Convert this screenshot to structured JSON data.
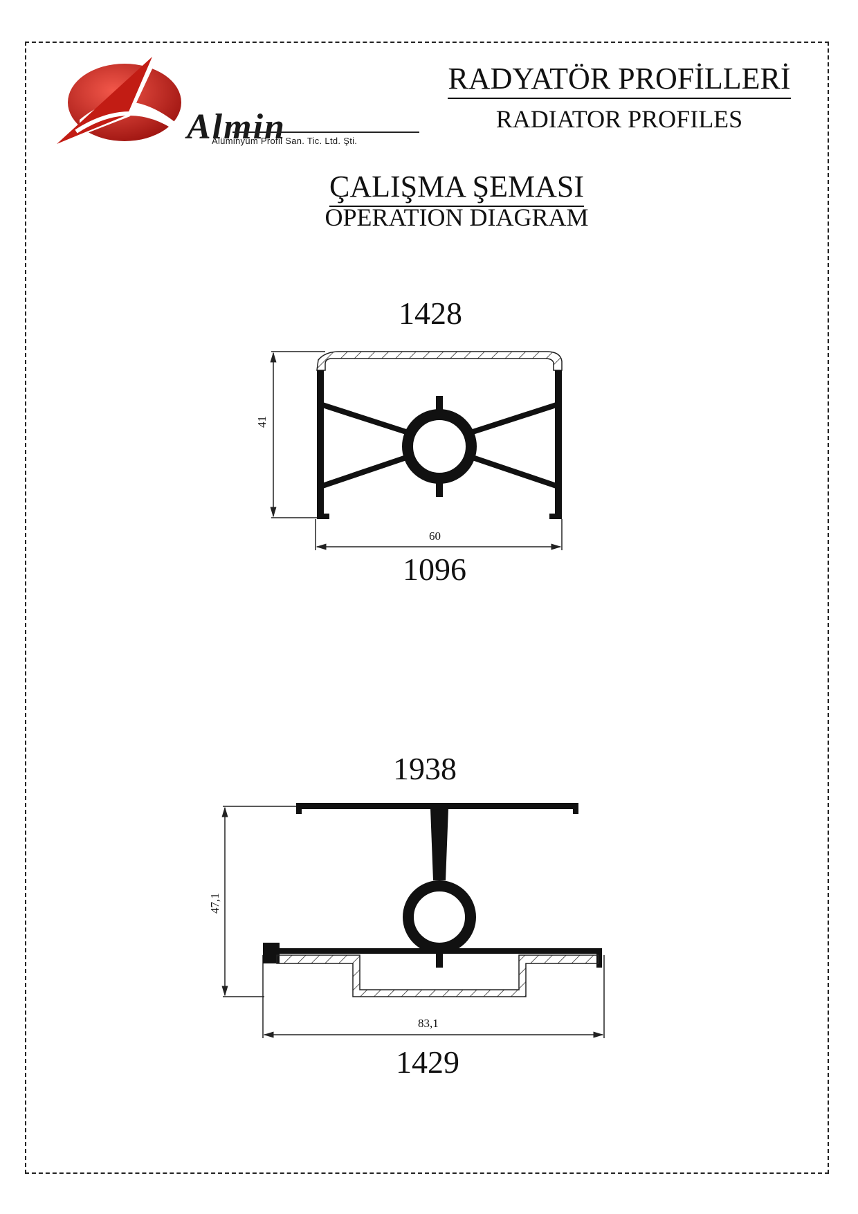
{
  "header": {
    "brand_name": "Almin",
    "brand_subtitle": "Alüminyum Profil San. Tic. Ltd. Şti.",
    "title_tr": "RADYATÖR PROFİLLERİ",
    "title_en": "RADIATOR PROFILES"
  },
  "section": {
    "title_tr": "ÇALIŞMA ŞEMASI",
    "title_en": "OPERATION DIAGRAM"
  },
  "profiles": [
    {
      "top_code": "1428",
      "bottom_code": "1096",
      "height_dim": "41",
      "width_dim": "60"
    },
    {
      "top_code": "1938",
      "bottom_code": "1429",
      "height_dim": "47,1",
      "width_dim": "83,1"
    }
  ],
  "colors": {
    "logo_red": "#d6261c",
    "logo_dark_red": "#9e1410",
    "profile_fill": "#111111",
    "line": "#222222"
  }
}
